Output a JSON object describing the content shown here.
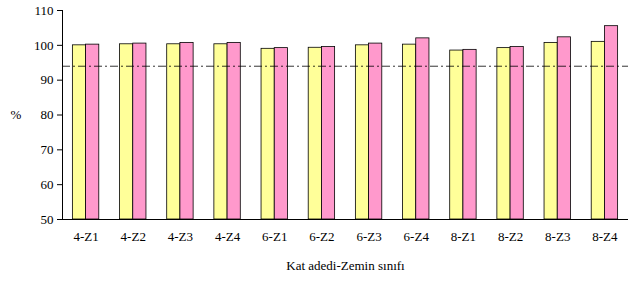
{
  "chart_data": {
    "type": "bar",
    "x_label": "Kat adedi-Zemin sınıfı",
    "y_label": "%",
    "categories": [
      "4-Z1",
      "4-Z2",
      "4-Z3",
      "4-Z4",
      "6-Z1",
      "6-Z2",
      "6-Z3",
      "6-Z4",
      "8-Z1",
      "8-Z2",
      "8-Z3",
      "8-Z4"
    ],
    "series": [
      {
        "color": "#FFFF99",
        "values": [
          100,
          100.3,
          100.3,
          100.3,
          99,
          99.3,
          100,
          100.2,
          98.5,
          99.2,
          100.7,
          101
        ]
      },
      {
        "color": "#FF99CC",
        "values": [
          100.2,
          100.5,
          100.7,
          100.7,
          99.2,
          99.5,
          100.5,
          102,
          98.7,
          99.5,
          102.3,
          105.5
        ]
      }
    ],
    "ylim": [
      50,
      110
    ],
    "yticks": [
      50,
      60,
      70,
      80,
      90,
      100,
      110
    ],
    "reference_line": 94,
    "grid": false
  }
}
